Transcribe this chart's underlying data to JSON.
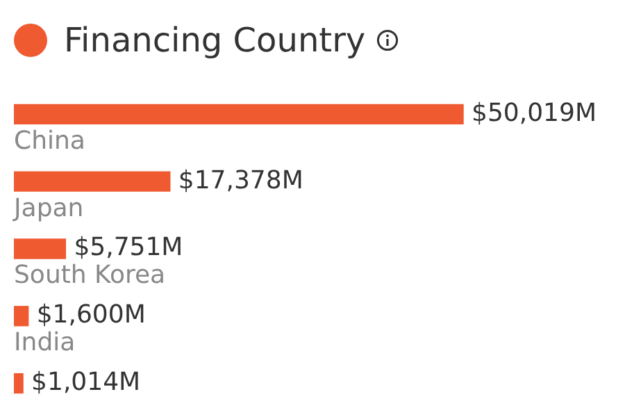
{
  "chart_data": {
    "type": "bar",
    "orientation": "horizontal",
    "title": "Financing Country",
    "categories": [
      "China",
      "Japan",
      "South Korea",
      "India",
      null
    ],
    "values": [
      50019,
      17378,
      5751,
      1600,
      1014
    ],
    "value_labels": [
      "$50,019M",
      "$17,378M",
      "$5,751M",
      "$1,600M",
      "$1,014M"
    ],
    "color": "#f05a30"
  }
}
